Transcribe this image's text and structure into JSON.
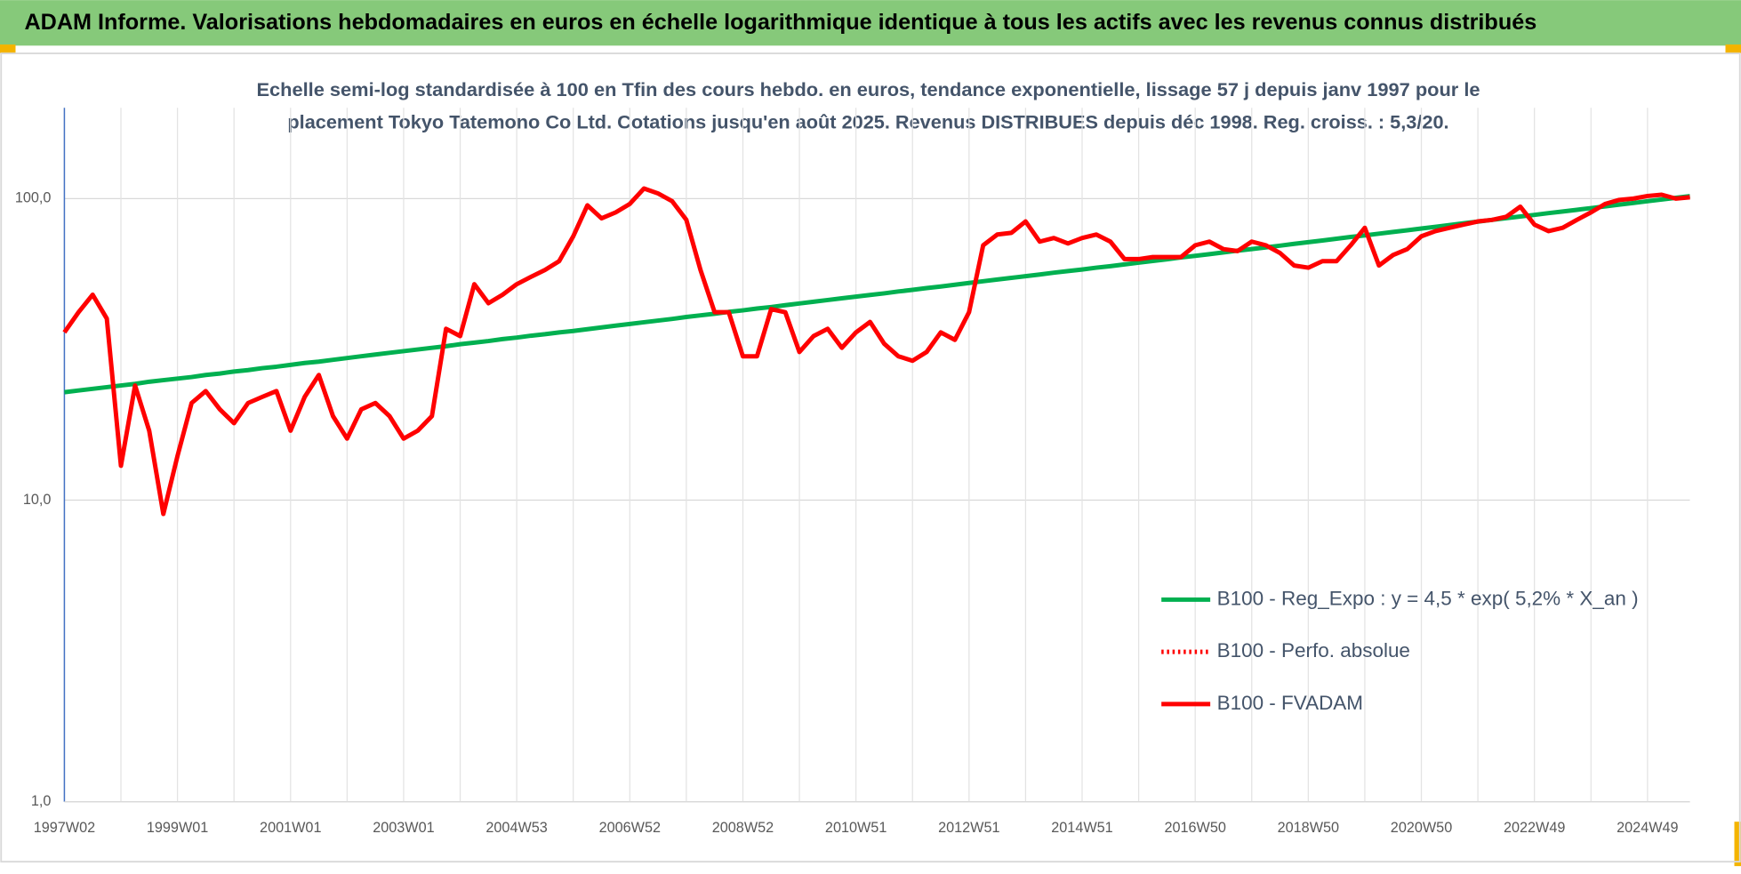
{
  "chart_data": {
    "type": "line",
    "title": "ADAM Informe. Valorisations hebdomadaires en euros en échelle logarithmique identique à tous les actifs avec les revenus connus distribués",
    "subtitle": [
      "Echelle semi-log standardisée à 100 en Tfin des cours hebdo. en euros, tendance exponentielle, lissage 57 j depuis janv 1997 pour le",
      "placement Tokyo Tatemono Co Ltd. Cotations jusqu'en août 2025.  Revenus DISTRIBUES depuis déc 1998. Reg. croiss. : 5,3/20."
    ],
    "categories": [
      "1997W02",
      null,
      null,
      null,
      null,
      null,
      null,
      null,
      "1999W01",
      null,
      null,
      null,
      null,
      null,
      null,
      null,
      "2001W01",
      null,
      null,
      null,
      null,
      null,
      null,
      null,
      "2003W01",
      null,
      null,
      null,
      null,
      null,
      null,
      null,
      "2004W53",
      null,
      null,
      null,
      null,
      null,
      null,
      null,
      "2006W52",
      null,
      null,
      null,
      null,
      null,
      null,
      null,
      "2008W52",
      null,
      null,
      null,
      null,
      null,
      null,
      null,
      "2010W51",
      null,
      null,
      null,
      null,
      null,
      null,
      null,
      "2012W51",
      null,
      null,
      null,
      null,
      null,
      null,
      null,
      "2014W51",
      null,
      null,
      null,
      null,
      null,
      null,
      null,
      "2016W50",
      null,
      null,
      null,
      null,
      null,
      null,
      null,
      "2018W50",
      null,
      null,
      null,
      null,
      null,
      null,
      null,
      "2020W50",
      null,
      null,
      null,
      null,
      null,
      null,
      null,
      "2022W49",
      null,
      null,
      null,
      null,
      null,
      null,
      null,
      "2024W49",
      null,
      null,
      null
    ],
    "series": [
      {
        "name": "B100 - Reg_Expo : y = 4,5 * exp( 5,2% *  X_an )",
        "color": "#00b050",
        "line_style": "solid",
        "values": [
          22.8,
          23.1,
          23.4,
          23.7,
          24.0,
          24.3,
          24.7,
          25.0,
          25.3,
          25.6,
          26.0,
          26.3,
          26.7,
          27.0,
          27.4,
          27.7,
          28.1,
          28.5,
          28.8,
          29.2,
          29.6,
          30.0,
          30.4,
          30.8,
          31.2,
          31.6,
          32.0,
          32.4,
          32.9,
          33.3,
          33.7,
          34.2,
          34.6,
          35.1,
          35.5,
          36.0,
          36.4,
          36.9,
          37.4,
          37.9,
          38.4,
          38.9,
          39.4,
          39.9,
          40.5,
          41.0,
          41.5,
          42.1,
          42.6,
          43.2,
          43.7,
          44.3,
          44.9,
          45.5,
          46.1,
          46.7,
          47.3,
          47.9,
          48.5,
          49.2,
          49.8,
          50.5,
          51.1,
          51.8,
          52.5,
          53.2,
          53.9,
          54.6,
          55.3,
          56.0,
          56.8,
          57.5,
          58.2,
          59.0,
          59.7,
          60.5,
          61.3,
          62.1,
          62.9,
          63.8,
          64.6,
          65.4,
          66.3,
          67.2,
          68.0,
          68.9,
          69.8,
          70.8,
          71.7,
          72.6,
          73.6,
          74.6,
          75.5,
          76.5,
          77.5,
          78.5,
          79.6,
          80.6,
          81.7,
          82.8,
          83.9,
          85.0,
          86.1,
          87.2,
          88.3,
          89.5,
          90.6,
          91.8,
          93.0,
          94.2,
          95.5,
          96.7,
          98.0,
          99.3,
          100.6,
          101.9
        ]
      },
      {
        "name": "B100 - Perfo. absolue",
        "color": "#ff0000",
        "line_style": "dotted",
        "values": [
          null,
          null,
          null,
          null,
          null,
          null,
          null,
          null,
          null,
          null,
          null,
          null,
          null,
          null,
          null,
          null,
          null,
          null,
          null,
          null,
          null,
          null,
          null,
          null,
          null,
          null,
          null,
          null,
          null,
          null,
          null,
          null,
          null,
          null,
          null,
          null,
          null,
          null,
          null,
          null,
          null,
          null,
          null,
          null,
          null,
          null,
          null,
          null,
          null,
          null,
          null,
          null,
          null,
          null,
          null,
          null,
          null,
          null,
          null,
          null,
          null,
          null,
          null,
          null,
          null,
          null,
          null,
          null,
          null,
          null,
          null,
          null,
          null,
          null,
          null,
          null,
          null,
          null,
          null,
          null,
          null,
          null,
          null,
          null,
          null,
          null,
          null,
          null,
          null,
          null,
          null,
          null,
          null,
          null,
          null,
          null,
          null,
          null,
          null,
          null,
          null,
          null,
          null,
          null,
          null,
          null,
          null,
          null,
          null,
          null,
          null,
          null,
          null,
          null,
          null,
          null
        ]
      },
      {
        "name": "B100 - FVADAM",
        "color": "#ff0000",
        "line_style": "solid",
        "values": [
          36,
          42,
          48,
          40,
          13,
          24,
          17,
          9,
          14,
          21,
          23,
          20,
          18,
          21,
          22,
          23,
          17,
          22,
          26,
          19,
          16,
          20,
          21,
          19,
          16,
          17,
          19,
          37,
          35,
          52,
          45,
          48,
          52,
          55,
          58,
          62,
          75,
          95,
          86,
          90,
          96,
          108,
          104,
          98,
          85,
          58,
          42,
          42,
          30,
          30,
          43,
          42,
          31,
          35,
          37,
          32,
          36,
          39,
          33,
          30,
          29,
          31,
          36,
          34,
          42,
          70,
          76,
          77,
          84,
          72,
          74,
          71,
          74,
          76,
          72,
          63,
          63,
          64,
          64,
          64,
          70,
          72,
          68,
          67,
          72,
          70,
          66,
          60,
          59,
          62,
          62,
          70,
          80,
          60,
          65,
          68,
          75,
          78,
          80,
          82,
          84,
          85,
          87,
          94,
          82,
          78,
          80,
          85,
          90,
          96,
          99,
          100,
          102,
          103,
          100,
          101
        ]
      }
    ],
    "ylim": [
      1,
      200
    ],
    "yticks": [
      {
        "value": 1,
        "label": "1,0"
      },
      {
        "value": 10,
        "label": "10,0"
      },
      {
        "value": 100,
        "label": "100,0"
      }
    ],
    "log_scale": true,
    "grid": true,
    "legend": "right"
  }
}
